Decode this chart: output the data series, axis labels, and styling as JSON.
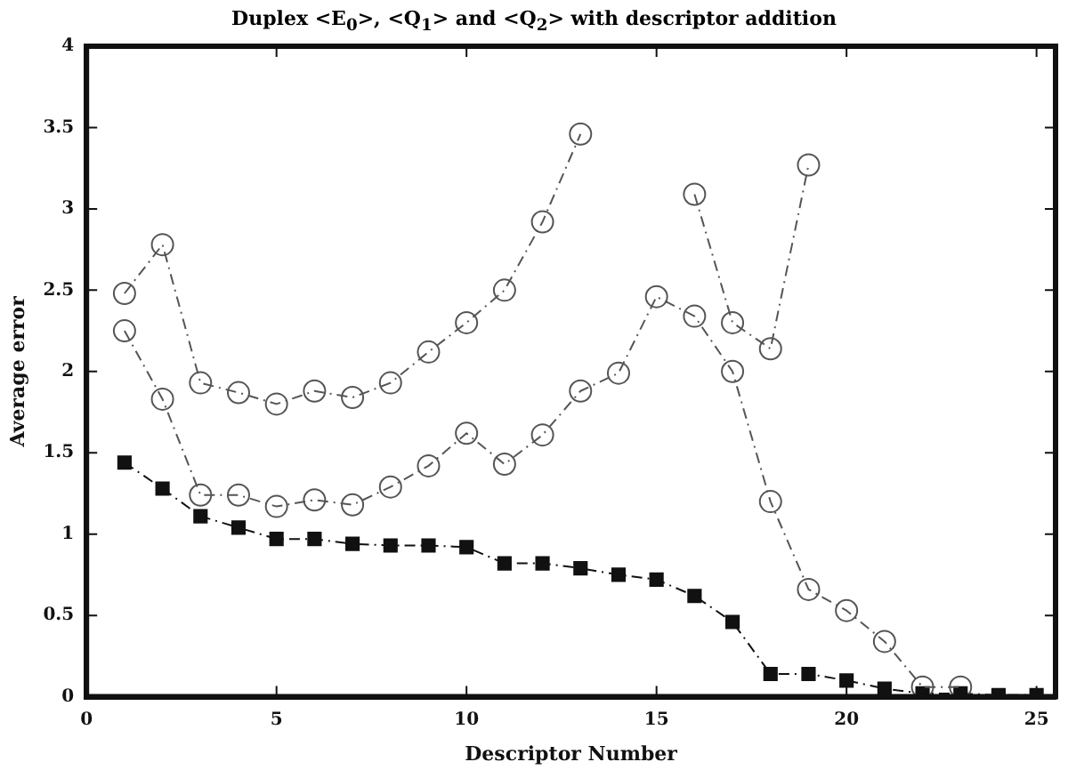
{
  "chart_data": {
    "type": "line",
    "title": "Duplex <E$_{0}$>, <Q$_{1}$> and <Q$_{2}$> with descriptor addition",
    "xlabel": "Descriptor Number",
    "ylabel": "Average error",
    "x": [
      1,
      2,
      3,
      4,
      5,
      6,
      7,
      8,
      9,
      10,
      11,
      12,
      13,
      14,
      15,
      16,
      17,
      18,
      19,
      20,
      21,
      22,
      23,
      24,
      25
    ],
    "series": [
      {
        "color": "#555555",
        "marker": "circle",
        "line_style": "dashed",
        "values": [
          2.48,
          2.78,
          1.93,
          1.87,
          1.8,
          1.88,
          1.84,
          1.93,
          2.12,
          2.3,
          2.5,
          2.92,
          3.46,
          null,
          null,
          3.09,
          2.3,
          2.14,
          3.27,
          null,
          null,
          null,
          null,
          null,
          null
        ]
      },
      {
        "color": "#555555",
        "marker": "circle",
        "line_style": "dashed",
        "values": [
          2.25,
          1.83,
          1.24,
          1.24,
          1.17,
          1.21,
          1.18,
          1.29,
          1.42,
          1.62,
          1.43,
          1.61,
          1.88,
          1.99,
          2.46,
          2.34,
          2.0,
          1.2,
          0.66,
          0.53,
          0.34,
          0.06,
          0.06,
          null,
          null
        ]
      },
      {
        "color": "#111111",
        "marker": "square",
        "line_style": "dashed",
        "values": [
          1.44,
          1.28,
          1.11,
          1.04,
          0.97,
          0.97,
          0.94,
          0.93,
          0.93,
          0.92,
          0.82,
          0.82,
          0.79,
          0.75,
          0.72,
          0.62,
          0.46,
          0.14,
          0.14,
          0.1,
          0.05,
          0.02,
          0.02,
          0.01,
          0.01
        ]
      }
    ],
    "xlim": [
      0,
      25.5
    ],
    "xticks": [
      0,
      5,
      10,
      15,
      20,
      25
    ],
    "ylim": [
      0,
      4
    ],
    "yticks": [
      0,
      0.5,
      1,
      1.5,
      2,
      2.5,
      3,
      3.5,
      4
    ],
    "grid": false,
    "legend": false
  }
}
